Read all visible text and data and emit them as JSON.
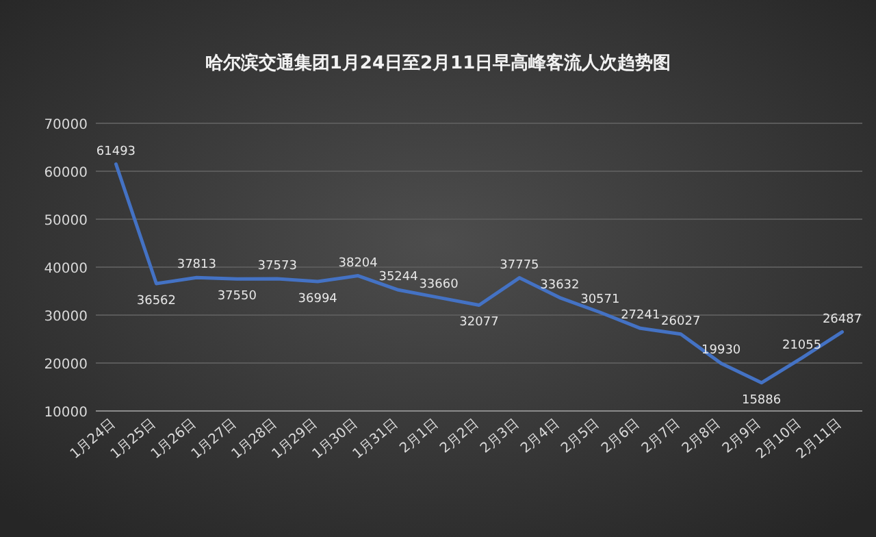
{
  "chart_data": {
    "type": "line",
    "title": "哈尔滨交通集团1月24日至2月11日早高峰客流人次趋势图",
    "categories": [
      "1月24日",
      "1月25日",
      "1月26日",
      "1月27日",
      "1月28日",
      "1月29日",
      "1月30日",
      "1月31日",
      "2月1日",
      "2月2日",
      "2月3日",
      "2月4日",
      "2月5日",
      "2月6日",
      "2月7日",
      "2月8日",
      "2月9日",
      "2月10日",
      "2月11日"
    ],
    "values": [
      61493,
      36562,
      37813,
      37550,
      37573,
      36994,
      38204,
      35244,
      33660,
      32077,
      37775,
      33632,
      30571,
      27241,
      26027,
      19930,
      15886,
      21055,
      26487
    ],
    "color": "#4472c4",
    "ylim": [
      10000,
      70000
    ],
    "yticks": [
      10000,
      20000,
      30000,
      40000,
      50000,
      60000,
      70000
    ],
    "grid": "y",
    "data_labels": true
  }
}
